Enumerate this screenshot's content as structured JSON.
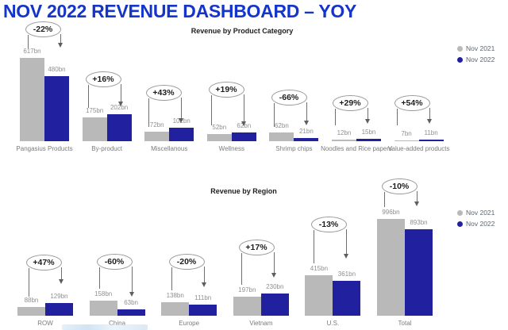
{
  "page": {
    "title": "NOV 2022 REVENUE DASHBOARD – YOY"
  },
  "colors": {
    "title": "#1435c8",
    "bar_nov2021": "#b9b9b9",
    "bar_nov2022": "#21219f",
    "annotation_line": "#6f6f6f"
  },
  "legend": {
    "items": [
      {
        "label": "Nov 2021",
        "color": "#b9b9b9"
      },
      {
        "label": "Nov 2022",
        "color": "#21219f"
      }
    ]
  },
  "chart_data": [
    {
      "type": "bar",
      "title": "Revenue by Product Category",
      "value_suffix": "bn",
      "legend_position": "right",
      "grid": false,
      "categories": [
        "Pangasius Products",
        "By-product",
        "Miscellanous",
        "Wellness",
        "Shrimp chips",
        "Noodles and Rice papers",
        "Value-added products"
      ],
      "series": [
        {
          "name": "Nov 2021",
          "values": [
            617,
            175,
            72,
            52,
            62,
            12,
            7
          ]
        },
        {
          "name": "Nov 2022",
          "values": [
            480,
            202,
            102,
            62,
            21,
            15,
            11
          ]
        }
      ],
      "pct_change": [
        "-22%",
        "+16%",
        "+43%",
        "+19%",
        "-66%",
        "+29%",
        "+54%"
      ]
    },
    {
      "type": "bar",
      "title": "Revenue by Region",
      "value_suffix": "bn",
      "legend_position": "right",
      "grid": false,
      "categories": [
        "ROW",
        "China",
        "Europe",
        "Vietnam",
        "U.S.",
        "Total"
      ],
      "series": [
        {
          "name": "Nov 2021",
          "values": [
            88,
            158,
            138,
            197,
            415,
            996
          ]
        },
        {
          "name": "Nov 2022",
          "values": [
            129,
            63,
            111,
            230,
            361,
            893
          ]
        }
      ],
      "pct_change": [
        "+47%",
        "-60%",
        "-20%",
        "+17%",
        "-13%",
        "-10%"
      ]
    }
  ]
}
